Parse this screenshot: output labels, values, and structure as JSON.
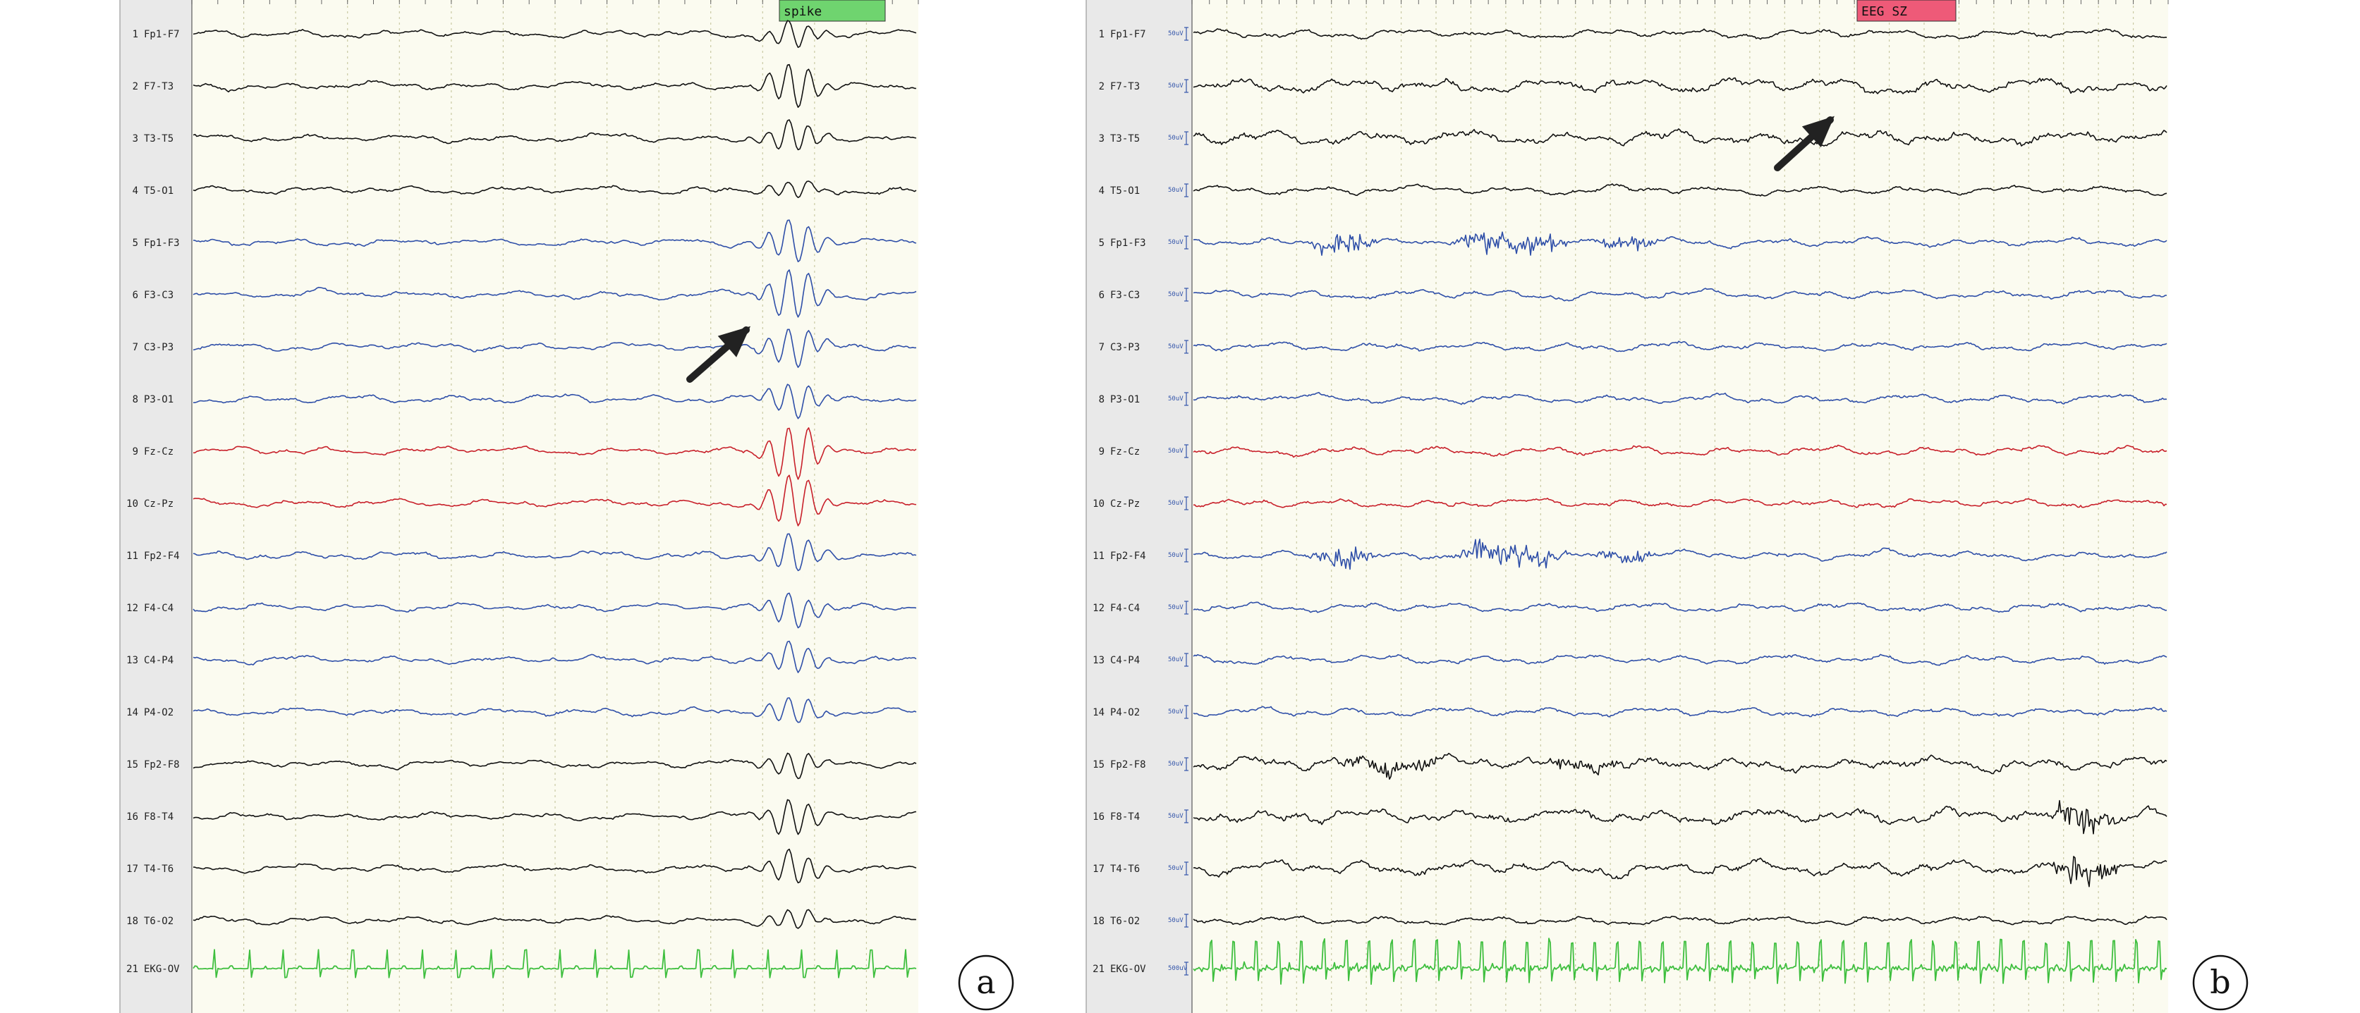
{
  "colors": {
    "left_chain": "#111111",
    "parasagittal": "#2f4fa8",
    "midline": "#c8202a",
    "right_chain": "#111111",
    "ekg": "#3fbf3f",
    "paper": "#fbfbf0",
    "gutter": "#e9e9e9",
    "spike_marker": "#6fd46f",
    "seizure_marker": "#ee5a78",
    "grid": "#c9c9a2",
    "arrow": "#222222"
  },
  "chart_data": [
    {
      "type": "line",
      "panel_label": "a",
      "x": {
        "grid_lines": 14
      },
      "channels": [
        {
          "num": "1",
          "name": "Fp1-F7",
          "group": "left_chain"
        },
        {
          "num": "2",
          "name": "F7-T3",
          "group": "left_chain"
        },
        {
          "num": "3",
          "name": "T3-T5",
          "group": "left_chain"
        },
        {
          "num": "4",
          "name": "T5-O1",
          "group": "left_chain"
        },
        {
          "num": "5",
          "name": "Fp1-F3",
          "group": "parasagittal"
        },
        {
          "num": "6",
          "name": "F3-C3",
          "group": "parasagittal"
        },
        {
          "num": "7",
          "name": "C3-P3",
          "group": "parasagittal"
        },
        {
          "num": "8",
          "name": "P3-O1",
          "group": "parasagittal"
        },
        {
          "num": "9",
          "name": "Fz-Cz",
          "group": "midline"
        },
        {
          "num": "10",
          "name": "Cz-Pz",
          "group": "midline"
        },
        {
          "num": "11",
          "name": "Fp2-F4",
          "group": "parasagittal"
        },
        {
          "num": "12",
          "name": "F4-C4",
          "group": "parasagittal"
        },
        {
          "num": "13",
          "name": "C4-P4",
          "group": "parasagittal"
        },
        {
          "num": "14",
          "name": "P4-O2",
          "group": "parasagittal"
        },
        {
          "num": "15",
          "name": "Fp2-F8",
          "group": "right_chain"
        },
        {
          "num": "16",
          "name": "F8-T4",
          "group": "right_chain"
        },
        {
          "num": "17",
          "name": "T4-T6",
          "group": "right_chain"
        },
        {
          "num": "18",
          "name": "T6-O2",
          "group": "right_chain"
        },
        {
          "num": "21",
          "name": "EKG-OV",
          "group": "ekg"
        }
      ],
      "event_marker": {
        "text": "spike",
        "color": "spike_marker"
      },
      "annotations": [
        {
          "type": "arrow"
        }
      ]
    },
    {
      "type": "line",
      "panel_label": "b",
      "x": {
        "grid_lines": 28
      },
      "channels": [
        {
          "num": "1",
          "name": "Fp1-F7",
          "amp": "50uV",
          "group": "left_chain"
        },
        {
          "num": "2",
          "name": "F7-T3",
          "amp": "50uV",
          "group": "left_chain"
        },
        {
          "num": "3",
          "name": "T3-T5",
          "amp": "50uV",
          "group": "left_chain"
        },
        {
          "num": "4",
          "name": "T5-O1",
          "amp": "50uV",
          "group": "left_chain"
        },
        {
          "num": "5",
          "name": "Fp1-F3",
          "amp": "50uV",
          "group": "parasagittal"
        },
        {
          "num": "6",
          "name": "F3-C3",
          "amp": "50uV",
          "group": "parasagittal"
        },
        {
          "num": "7",
          "name": "C3-P3",
          "amp": "50uV",
          "group": "parasagittal"
        },
        {
          "num": "8",
          "name": "P3-O1",
          "amp": "50uV",
          "group": "parasagittal"
        },
        {
          "num": "9",
          "name": "Fz-Cz",
          "amp": "50uV",
          "group": "midline"
        },
        {
          "num": "10",
          "name": "Cz-Pz",
          "amp": "50uV",
          "group": "midline"
        },
        {
          "num": "11",
          "name": "Fp2-F4",
          "amp": "50uV",
          "group": "parasagittal"
        },
        {
          "num": "12",
          "name": "F4-C4",
          "amp": "50uV",
          "group": "parasagittal"
        },
        {
          "num": "13",
          "name": "C4-P4",
          "amp": "50uV",
          "group": "parasagittal"
        },
        {
          "num": "14",
          "name": "P4-O2",
          "amp": "50uV",
          "group": "parasagittal"
        },
        {
          "num": "15",
          "name": "Fp2-F8",
          "amp": "50uV",
          "group": "right_chain"
        },
        {
          "num": "16",
          "name": "F8-T4",
          "amp": "50uV",
          "group": "right_chain"
        },
        {
          "num": "17",
          "name": "T4-T6",
          "amp": "50uV",
          "group": "right_chain"
        },
        {
          "num": "18",
          "name": "T6-O2",
          "amp": "50uV",
          "group": "right_chain"
        },
        {
          "num": "21",
          "name": "EKG-OV",
          "amp": "500uV",
          "group": "ekg"
        }
      ],
      "event_marker": {
        "text": "EEG SZ",
        "color": "seizure_marker"
      },
      "annotations": [
        {
          "type": "arrow"
        }
      ]
    }
  ]
}
